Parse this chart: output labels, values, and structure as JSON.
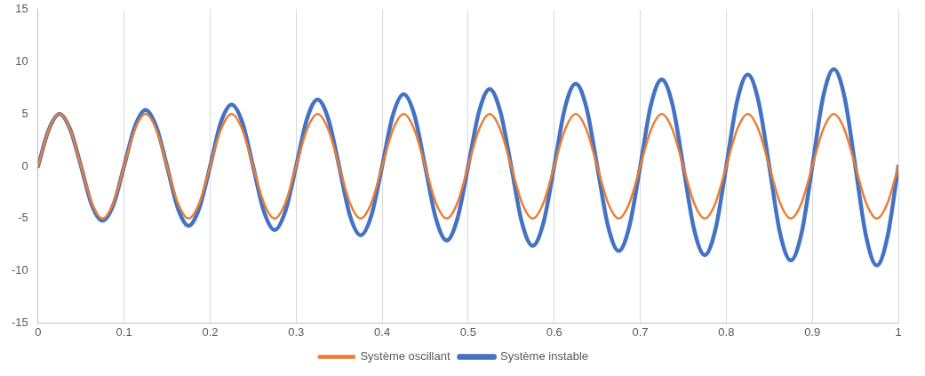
{
  "chart_data": {
    "type": "line",
    "x": [
      0,
      0.0125,
      0.025,
      0.0375,
      0.05,
      0.0625,
      0.075,
      0.0875,
      0.1,
      0.1125,
      0.125,
      0.1375,
      0.15,
      0.1625,
      0.175,
      0.1875,
      0.2,
      0.2125,
      0.225,
      0.2375,
      0.25,
      0.2625,
      0.275,
      0.2875,
      0.3,
      0.3125,
      0.325,
      0.3375,
      0.35,
      0.3625,
      0.375,
      0.3875,
      0.4,
      0.4125,
      0.425,
      0.4375,
      0.45,
      0.4625,
      0.475,
      0.4875,
      0.5,
      0.5125,
      0.525,
      0.5375,
      0.55,
      0.5625,
      0.575,
      0.5875,
      0.6,
      0.6125,
      0.625,
      0.6375,
      0.65,
      0.6625,
      0.675,
      0.6875,
      0.7,
      0.7125,
      0.725,
      0.7375,
      0.75,
      0.7625,
      0.775,
      0.7875,
      0.8,
      0.8125,
      0.825,
      0.8375,
      0.85,
      0.8625,
      0.875,
      0.8875,
      0.9,
      0.9125,
      0.925,
      0.9375,
      0.95,
      0.9625,
      0.975,
      0.9875,
      1
    ],
    "series": [
      {
        "name": "Système instable",
        "color": "#4472c4",
        "values": [
          0,
          3.5,
          5,
          3.5,
          0,
          -3.7,
          -5.2,
          -3.7,
          0,
          3.8,
          5.4,
          3.8,
          0,
          -4.0,
          -5.7,
          -4.0,
          0,
          4.2,
          5.9,
          4.2,
          0,
          -4.3,
          -6.1,
          -4.3,
          0,
          4.5,
          6.4,
          4.5,
          0,
          -4.7,
          -6.6,
          -4.7,
          0,
          4.9,
          6.9,
          4.9,
          0,
          -5.0,
          -7.1,
          -5.0,
          0,
          5.2,
          7.4,
          5.2,
          0,
          -5.4,
          -7.6,
          -5.4,
          0,
          5.6,
          7.9,
          5.6,
          0,
          -5.7,
          -8.1,
          -5.7,
          0,
          5.9,
          8.3,
          5.9,
          0,
          -6.0,
          -8.5,
          -6.0,
          0,
          6.2,
          8.8,
          6.2,
          0,
          -6.4,
          -9.0,
          -6.4,
          0,
          6.6,
          9.3,
          6.6,
          0,
          -6.7,
          -9.5,
          -6.7,
          0
        ]
      },
      {
        "name": "Système oscillant",
        "color": "#ed7d31",
        "values": [
          0,
          3.5,
          5,
          3.5,
          0,
          -3.5,
          -5,
          -3.5,
          0,
          3.5,
          5,
          3.5,
          0,
          -3.5,
          -5,
          -3.5,
          0,
          3.5,
          5,
          3.5,
          0,
          -3.5,
          -5,
          -3.5,
          0,
          3.5,
          5,
          3.5,
          0,
          -3.5,
          -5,
          -3.5,
          0,
          3.5,
          5,
          3.5,
          0,
          -3.5,
          -5,
          -3.5,
          0,
          3.5,
          5,
          3.5,
          0,
          -3.5,
          -5,
          -3.5,
          0,
          3.5,
          5,
          3.5,
          0,
          -3.5,
          -5,
          -3.5,
          0,
          3.5,
          5,
          3.5,
          0,
          -3.5,
          -5,
          -3.5,
          0,
          3.5,
          5,
          3.5,
          0,
          -3.5,
          -5,
          -3.5,
          0,
          3.5,
          5,
          3.5,
          0,
          -3.5,
          -5,
          -3.5,
          0
        ]
      }
    ],
    "xlim": [
      0,
      1
    ],
    "xticks": [
      0,
      0.1,
      0.2,
      0.3,
      0.4,
      0.5,
      0.6,
      0.7,
      0.8,
      0.9,
      1
    ],
    "ylim": [
      -15,
      15
    ],
    "yticks": [
      -15,
      -10,
      -5,
      0,
      5,
      10,
      15
    ],
    "grid": "x",
    "legend": "bottom",
    "marker": "none",
    "line_style": "solid"
  }
}
